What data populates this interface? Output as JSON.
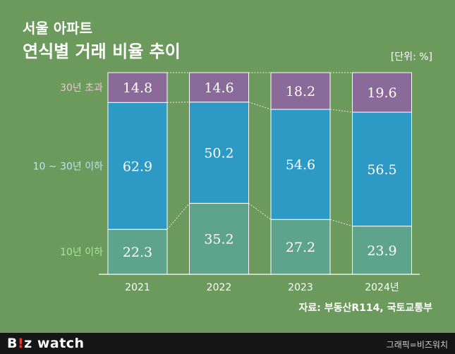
{
  "title": {
    "line1": "서울 아파트",
    "line2": "연식별 거래 비율 추이"
  },
  "unit": "[단위: %]",
  "source": "자료: 부동산R114, 국토교통부",
  "footer": {
    "logo_b": "B",
    "logo_bang": "!",
    "logo_rest": "z watch",
    "credit": "그래픽=비즈워치"
  },
  "colors": {
    "background": "#6b9a5c",
    "under10": "#5ea38c",
    "mid": "#2c9ac4",
    "over30": "#8a6a98",
    "label_under10": "#a8e6a0",
    "label_mid": "#bde4f5",
    "label_over30": "#f2c2cf"
  },
  "chart_data": {
    "type": "bar",
    "stacked": true,
    "categories": [
      "2021",
      "2022",
      "2023",
      "2024년"
    ],
    "series": [
      {
        "name": "10년 이하",
        "values": [
          22.3,
          35.2,
          27.2,
          23.9
        ]
      },
      {
        "name": "10 ~ 30년 이하",
        "values": [
          62.9,
          50.2,
          54.6,
          56.5
        ]
      },
      {
        "name": "30년 초과",
        "values": [
          14.8,
          14.6,
          18.2,
          19.6
        ]
      }
    ],
    "ylim": [
      0,
      100
    ],
    "xlabel": "",
    "ylabel": "",
    "grid": false,
    "legend": "left"
  }
}
